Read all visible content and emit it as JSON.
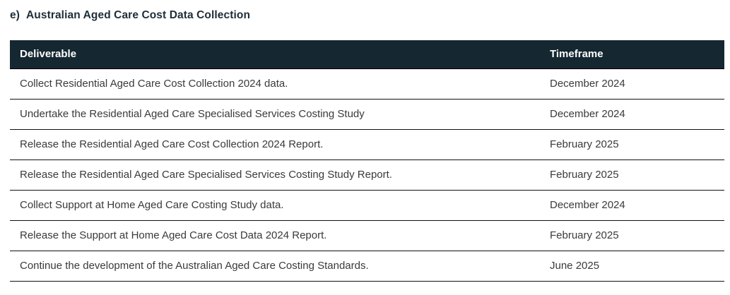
{
  "heading": {
    "label": "e)",
    "title": "Australian Aged Care Cost Data Collection"
  },
  "table": {
    "headers": {
      "deliverable": "Deliverable",
      "timeframe": "Timeframe"
    },
    "rows": [
      {
        "deliverable": "Collect Residential Aged Care Cost Collection 2024 data.",
        "timeframe": "December 2024"
      },
      {
        "deliverable": "Undertake the Residential Aged Care Specialised Services Costing Study",
        "timeframe": "December 2024"
      },
      {
        "deliverable": "Release the Residential Aged Care Cost Collection 2024 Report.",
        "timeframe": "February 2025"
      },
      {
        "deliverable": "Release the Residential Aged Care Specialised Services Costing Study Report.",
        "timeframe": "February 2025"
      },
      {
        "deliverable": "Collect Support at Home Aged Care Costing Study data.",
        "timeframe": "December 2024"
      },
      {
        "deliverable": "Release the Support at Home Aged Care Cost Data 2024 Report.",
        "timeframe": "February 2025"
      },
      {
        "deliverable": "Continue the development of the Australian Aged Care Costing Standards.",
        "timeframe": "June 2025"
      }
    ]
  },
  "colors": {
    "header_bg": "#152731",
    "header_text": "#ffffff",
    "heading_text": "#1e2e38",
    "body_text": "#3a3a3a",
    "row_border": "#111111"
  }
}
